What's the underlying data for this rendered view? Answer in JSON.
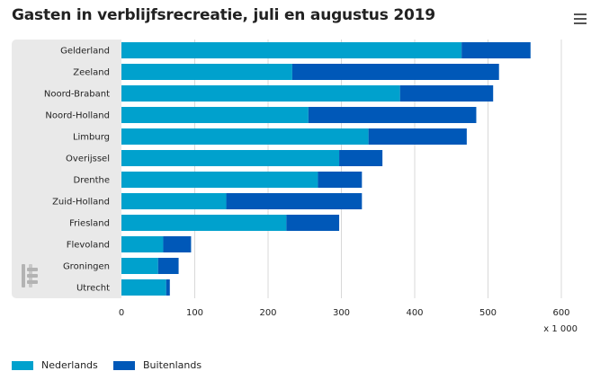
{
  "title": "Gasten in verblijfsrecreatie, juli en augustus 2019",
  "menu": {
    "icon": "hamburger-menu-icon"
  },
  "logo": {
    "icon": "cbs-logo-icon"
  },
  "colors": {
    "nederlands": "#00a1cd",
    "buitenlands": "#0058b8",
    "panel": "#e9e9e9",
    "grid": "#d8d8d8"
  },
  "chart_data": {
    "type": "bar",
    "orientation": "horizontal",
    "stacked": true,
    "categories": [
      "Gelderland",
      "Zeeland",
      "Noord-Brabant",
      "Noord-Holland",
      "Limburg",
      "Overijssel",
      "Drenthe",
      "Zuid-Holland",
      "Friesland",
      "Flevoland",
      "Groningen",
      "Utrecht"
    ],
    "series": [
      {
        "name": "Nederlands",
        "values": [
          464,
          233,
          380,
          255,
          337,
          297,
          268,
          143,
          225,
          57,
          50,
          61
        ]
      },
      {
        "name": "Buitenlands",
        "values": [
          94,
          282,
          127,
          229,
          134,
          59,
          60,
          185,
          72,
          38,
          28,
          5
        ]
      }
    ],
    "xlim": [
      0,
      600
    ],
    "xticks": [
      0,
      100,
      200,
      300,
      400,
      500,
      600
    ],
    "unit": "x 1 000",
    "grid": true,
    "legend_position": "bottom-left"
  }
}
